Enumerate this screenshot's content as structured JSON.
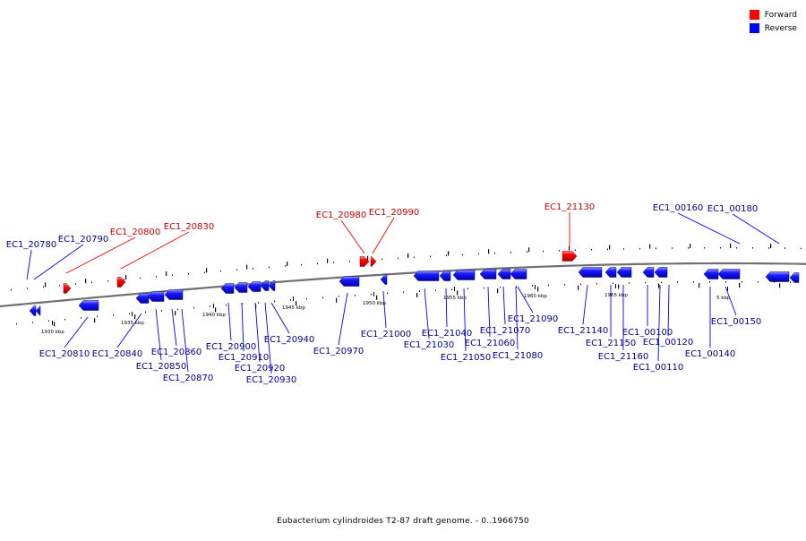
{
  "legend": [
    {
      "label": "Forward",
      "color": "#ff0000"
    },
    {
      "label": "Reverse",
      "color": "#0000ff"
    }
  ],
  "caption": "Eubacterium cylindroides T2-87 draft genome. - 0..1966750",
  "colors": {
    "forward": "#ff0000",
    "forward_label": "#cc0000",
    "reverse": "#0000ff",
    "reverse_label": "#00008b",
    "backbone": "#707070"
  },
  "scale_labels": [
    "1930 kbp",
    "1935 kbp",
    "1940 kbp",
    "1945 kbp",
    "1950 kbp",
    "1955 kbp",
    "1960 kbp",
    "1965 kbp",
    "5 kbp"
  ],
  "forward_labels": [
    "EC1_20800",
    "EC1_20830",
    "EC1_20980",
    "EC1_20990",
    "EC1_21130"
  ],
  "reverse_labels_above": [
    "EC1_20780",
    "EC1_20790",
    "EC1_00160",
    "EC1_00180"
  ],
  "reverse_labels_below": [
    "EC1_20810",
    "EC1_20840",
    "EC1_20850",
    "EC1_20860",
    "EC1_20870",
    "EC1_20900",
    "EC1_20910",
    "EC1_20920",
    "EC1_20930",
    "EC1_20940",
    "EC1_20970",
    "EC1_21000",
    "EC1_21030",
    "EC1_21040",
    "EC1_21050",
    "EC1_21060",
    "EC1_21070",
    "EC1_21080",
    "EC1_21090",
    "EC1_21140",
    "EC1_21150",
    "EC1_21160",
    "EC1_00100",
    "EC1_00110",
    "EC1_00120",
    "EC1_00140",
    "EC1_00150"
  ]
}
